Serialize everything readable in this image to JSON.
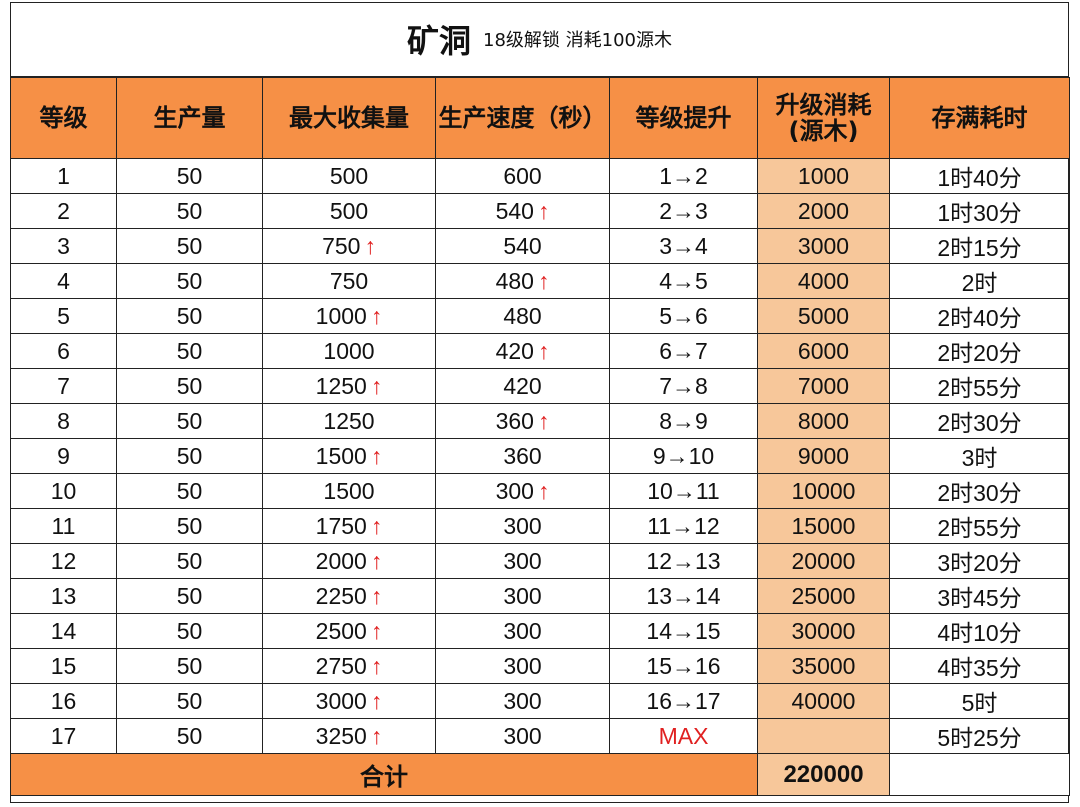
{
  "title": {
    "main": "矿洞",
    "subtitle": "18级解锁 消耗100源木"
  },
  "headers": [
    "等级",
    "生产量",
    "最大收集量",
    "生产速度（秒）",
    "等级提升",
    "升级消耗\n(源木)",
    "存满耗时"
  ],
  "up_arrow": "↑",
  "rows": [
    {
      "level": "1",
      "output": "50",
      "capacity": "500",
      "capacity_up": false,
      "speed": "600",
      "speed_up": false,
      "upgrade": "1→2",
      "cost": "1000",
      "fill_time": "1时40分"
    },
    {
      "level": "2",
      "output": "50",
      "capacity": "500",
      "capacity_up": false,
      "speed": "540",
      "speed_up": true,
      "upgrade": "2→3",
      "cost": "2000",
      "fill_time": "1时30分"
    },
    {
      "level": "3",
      "output": "50",
      "capacity": "750",
      "capacity_up": true,
      "speed": "540",
      "speed_up": false,
      "upgrade": "3→4",
      "cost": "3000",
      "fill_time": "2时15分"
    },
    {
      "level": "4",
      "output": "50",
      "capacity": "750",
      "capacity_up": false,
      "speed": "480",
      "speed_up": true,
      "upgrade": "4→5",
      "cost": "4000",
      "fill_time": "2时"
    },
    {
      "level": "5",
      "output": "50",
      "capacity": "1000",
      "capacity_up": true,
      "speed": "480",
      "speed_up": false,
      "upgrade": "5→6",
      "cost": "5000",
      "fill_time": "2时40分"
    },
    {
      "level": "6",
      "output": "50",
      "capacity": "1000",
      "capacity_up": false,
      "speed": "420",
      "speed_up": true,
      "upgrade": "6→7",
      "cost": "6000",
      "fill_time": "2时20分"
    },
    {
      "level": "7",
      "output": "50",
      "capacity": "1250",
      "capacity_up": true,
      "speed": "420",
      "speed_up": false,
      "upgrade": "7→8",
      "cost": "7000",
      "fill_time": "2时55分"
    },
    {
      "level": "8",
      "output": "50",
      "capacity": "1250",
      "capacity_up": false,
      "speed": "360",
      "speed_up": true,
      "upgrade": "8→9",
      "cost": "8000",
      "fill_time": "2时30分"
    },
    {
      "level": "9",
      "output": "50",
      "capacity": "1500",
      "capacity_up": true,
      "speed": "360",
      "speed_up": false,
      "upgrade": "9→10",
      "cost": "9000",
      "fill_time": "3时"
    },
    {
      "level": "10",
      "output": "50",
      "capacity": "1500",
      "capacity_up": false,
      "speed": "300",
      "speed_up": true,
      "upgrade": "10→11",
      "cost": "10000",
      "fill_time": "2时30分"
    },
    {
      "level": "11",
      "output": "50",
      "capacity": "1750",
      "capacity_up": true,
      "speed": "300",
      "speed_up": false,
      "upgrade": "11→12",
      "cost": "15000",
      "fill_time": "2时55分"
    },
    {
      "level": "12",
      "output": "50",
      "capacity": "2000",
      "capacity_up": true,
      "speed": "300",
      "speed_up": false,
      "upgrade": "12→13",
      "cost": "20000",
      "fill_time": "3时20分"
    },
    {
      "level": "13",
      "output": "50",
      "capacity": "2250",
      "capacity_up": true,
      "speed": "300",
      "speed_up": false,
      "upgrade": "13→14",
      "cost": "25000",
      "fill_time": "3时45分"
    },
    {
      "level": "14",
      "output": "50",
      "capacity": "2500",
      "capacity_up": true,
      "speed": "300",
      "speed_up": false,
      "upgrade": "14→15",
      "cost": "30000",
      "fill_time": "4时10分"
    },
    {
      "level": "15",
      "output": "50",
      "capacity": "2750",
      "capacity_up": true,
      "speed": "300",
      "speed_up": false,
      "upgrade": "15→16",
      "cost": "35000",
      "fill_time": "4时35分"
    },
    {
      "level": "16",
      "output": "50",
      "capacity": "3000",
      "capacity_up": true,
      "speed": "300",
      "speed_up": false,
      "upgrade": "16→17",
      "cost": "40000",
      "fill_time": "5时"
    },
    {
      "level": "17",
      "output": "50",
      "capacity": "3250",
      "capacity_up": true,
      "speed": "300",
      "speed_up": false,
      "upgrade": "MAX",
      "cost": "",
      "fill_time": "5时25分"
    }
  ],
  "total": {
    "label": "合计",
    "cost": "220000"
  },
  "colors": {
    "header_bg": "#f69046",
    "cost_bg": "#f7c79a",
    "arrow": "#e02020"
  }
}
